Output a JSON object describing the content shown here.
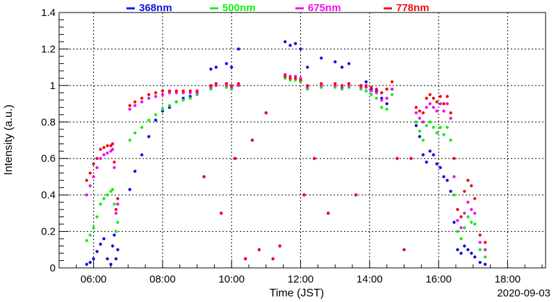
{
  "chart_data": {
    "type": "scatter",
    "title": "",
    "xlabel": "Time (JST)",
    "ylabel": "Intensity (a.u.)",
    "date_label": "2020-09-03",
    "xlim": [
      5.0,
      19.1
    ],
    "ylim": [
      0,
      1.4
    ],
    "x_tick_values": [
      6,
      8,
      10,
      12,
      14,
      16,
      18
    ],
    "x_tick_labels": [
      "06:00",
      "08:00",
      "10:00",
      "12:00",
      "14:00",
      "16:00",
      "18:00"
    ],
    "y_tick_values": [
      0,
      0.2,
      0.4,
      0.6,
      0.8,
      1.0,
      1.2,
      1.4
    ],
    "y_tick_labels": [
      "0",
      "0.2",
      "0.4",
      "0.6",
      "0.8",
      "1",
      "1.2",
      "1.4"
    ],
    "grid": true,
    "legend_position": "top",
    "series": [
      {
        "name": "368nm",
        "color": "#1010e0",
        "x": [
          5.8,
          5.9,
          6.0,
          6.1,
          6.2,
          6.3,
          6.4,
          6.5,
          6.55,
          6.6,
          6.65,
          6.7,
          7.05,
          7.2,
          7.4,
          7.6,
          7.8,
          8.0,
          8.2,
          8.4,
          8.6,
          8.8,
          9.0,
          9.2,
          9.4,
          9.55,
          9.7,
          9.85,
          10.0,
          10.1,
          10.2,
          10.4,
          10.6,
          10.8,
          11.0,
          11.2,
          11.4,
          11.55,
          11.7,
          11.85,
          12.0,
          12.1,
          12.2,
          12.4,
          12.6,
          12.8,
          13.0,
          13.2,
          13.4,
          13.6,
          13.75,
          13.9,
          14.05,
          14.2,
          14.35,
          14.5,
          14.65,
          14.8,
          15.0,
          15.2,
          15.35,
          15.45,
          15.55,
          15.65,
          15.75,
          15.85,
          15.95,
          16.05,
          16.15,
          16.25,
          16.35,
          16.45,
          16.55,
          16.65,
          16.75,
          16.85,
          16.95,
          17.05,
          17.2,
          17.35
        ],
        "y": [
          0.02,
          0.03,
          0.05,
          0.09,
          0.13,
          0.16,
          0.05,
          0.02,
          0.12,
          0.18,
          0.05,
          0.1,
          0.43,
          0.53,
          0.62,
          0.72,
          0.81,
          0.86,
          0.88,
          0.91,
          0.93,
          0.94,
          0.96,
          0.5,
          1.09,
          1.1,
          0.3,
          1.12,
          1.1,
          0.6,
          1.2,
          0.05,
          0.7,
          0.1,
          0.85,
          0.05,
          0.12,
          1.24,
          1.22,
          1.23,
          1.2,
          0.4,
          1.1,
          0.6,
          1.15,
          0.3,
          1.13,
          1.1,
          1.12,
          0.4,
          1.0,
          1.02,
          0.98,
          0.97,
          0.93,
          0.9,
          0.98,
          0.6,
          0.1,
          0.6,
          0.78,
          0.72,
          0.62,
          0.58,
          0.64,
          0.62,
          0.57,
          0.55,
          0.5,
          0.48,
          0.42,
          0.25,
          0.1,
          0.08,
          0.12,
          0.1,
          0.08,
          0.06,
          0.03,
          0.02
        ]
      },
      {
        "name": "500nm",
        "color": "#10f010",
        "x": [
          5.8,
          5.9,
          6.0,
          6.1,
          6.2,
          6.3,
          6.4,
          6.5,
          6.55,
          6.6,
          6.65,
          6.7,
          7.05,
          7.2,
          7.4,
          7.6,
          7.8,
          8.0,
          8.2,
          8.4,
          8.6,
          8.8,
          9.0,
          9.2,
          9.4,
          9.55,
          9.7,
          9.85,
          10.0,
          10.1,
          10.2,
          10.4,
          10.6,
          10.8,
          11.0,
          11.2,
          11.4,
          11.55,
          11.7,
          11.85,
          12.0,
          12.1,
          12.2,
          12.4,
          12.6,
          12.8,
          13.0,
          13.2,
          13.4,
          13.6,
          13.75,
          13.9,
          14.05,
          14.2,
          14.35,
          14.5,
          14.65,
          14.8,
          15.0,
          15.2,
          15.35,
          15.45,
          15.55,
          15.65,
          15.75,
          15.85,
          15.95,
          16.05,
          16.15,
          16.25,
          16.35,
          16.45,
          16.55,
          16.65,
          16.75,
          16.85,
          16.95,
          17.05,
          17.2,
          17.35
        ],
        "y": [
          0.15,
          0.18,
          0.22,
          0.28,
          0.35,
          0.38,
          0.4,
          0.42,
          0.43,
          0.35,
          0.2,
          0.25,
          0.7,
          0.74,
          0.77,
          0.81,
          0.84,
          0.87,
          0.89,
          0.91,
          0.92,
          0.93,
          0.95,
          0.5,
          0.98,
          1.0,
          0.3,
          0.99,
          0.98,
          0.6,
          1.0,
          0.05,
          0.7,
          0.1,
          0.85,
          0.05,
          0.12,
          1.04,
          1.03,
          1.03,
          1.02,
          0.4,
          0.98,
          0.6,
          0.99,
          0.3,
          0.99,
          0.98,
          0.99,
          0.4,
          0.98,
          0.97,
          0.95,
          0.93,
          0.88,
          0.87,
          0.95,
          0.6,
          0.1,
          0.6,
          0.8,
          0.75,
          0.7,
          0.78,
          0.8,
          0.77,
          0.74,
          0.77,
          0.73,
          0.77,
          0.7,
          0.4,
          0.2,
          0.16,
          0.22,
          0.28,
          0.25,
          0.24,
          0.1,
          0.06
        ]
      },
      {
        "name": "675nm",
        "color": "#f010f0",
        "x": [
          5.8,
          5.9,
          6.0,
          6.1,
          6.2,
          6.3,
          6.4,
          6.5,
          6.55,
          6.6,
          6.65,
          6.7,
          7.05,
          7.2,
          7.4,
          7.6,
          7.8,
          8.0,
          8.2,
          8.4,
          8.6,
          8.8,
          9.0,
          9.2,
          9.4,
          9.55,
          9.7,
          9.85,
          10.0,
          10.1,
          10.2,
          10.4,
          10.6,
          10.8,
          11.0,
          11.2,
          11.4,
          11.55,
          11.7,
          11.85,
          12.0,
          12.1,
          12.2,
          12.4,
          12.6,
          12.8,
          13.0,
          13.2,
          13.4,
          13.6,
          13.75,
          13.9,
          14.05,
          14.2,
          14.35,
          14.5,
          14.65,
          14.8,
          15.0,
          15.2,
          15.35,
          15.45,
          15.55,
          15.65,
          15.75,
          15.85,
          15.95,
          16.05,
          16.15,
          16.25,
          16.35,
          16.45,
          16.55,
          16.65,
          16.75,
          16.85,
          16.95,
          17.05,
          17.2,
          17.35
        ],
        "y": [
          0.4,
          0.45,
          0.5,
          0.55,
          0.6,
          0.62,
          0.63,
          0.64,
          0.65,
          0.55,
          0.3,
          0.35,
          0.87,
          0.89,
          0.91,
          0.93,
          0.94,
          0.95,
          0.96,
          0.96,
          0.96,
          0.96,
          0.96,
          0.5,
          0.99,
          1.0,
          0.3,
          1.0,
          0.99,
          0.6,
          1.0,
          0.05,
          0.7,
          0.1,
          0.85,
          0.05,
          0.12,
          1.06,
          1.05,
          1.05,
          1.04,
          0.4,
          0.99,
          0.6,
          1.0,
          0.3,
          1.0,
          0.99,
          1.0,
          0.4,
          0.99,
          0.99,
          0.97,
          0.96,
          0.92,
          0.93,
          0.98,
          0.6,
          0.1,
          0.6,
          0.85,
          0.82,
          0.8,
          0.88,
          0.9,
          0.88,
          0.86,
          0.9,
          0.86,
          0.9,
          0.82,
          0.5,
          0.26,
          0.22,
          0.3,
          0.36,
          0.32,
          0.3,
          0.14,
          0.1
        ]
      },
      {
        "name": "778nm",
        "color": "#f01010",
        "x": [
          5.8,
          5.9,
          6.0,
          6.1,
          6.2,
          6.3,
          6.4,
          6.5,
          6.55,
          6.6,
          6.65,
          6.7,
          7.05,
          7.2,
          7.4,
          7.6,
          7.8,
          8.0,
          8.2,
          8.4,
          8.6,
          8.8,
          9.0,
          9.2,
          9.4,
          9.55,
          9.7,
          9.85,
          10.0,
          10.1,
          10.2,
          10.4,
          10.6,
          10.8,
          11.0,
          11.2,
          11.4,
          11.55,
          11.7,
          11.85,
          12.0,
          12.1,
          12.2,
          12.4,
          12.6,
          12.8,
          13.0,
          13.2,
          13.4,
          13.6,
          13.75,
          13.9,
          14.05,
          14.2,
          14.35,
          14.5,
          14.65,
          14.8,
          15.0,
          15.2,
          15.35,
          15.45,
          15.55,
          15.65,
          15.75,
          15.85,
          15.95,
          16.05,
          16.15,
          16.25,
          16.35,
          16.45,
          16.55,
          16.65,
          16.75,
          16.85,
          16.95,
          17.05,
          17.2,
          17.35
        ],
        "y": [
          0.48,
          0.52,
          0.57,
          0.6,
          0.65,
          0.66,
          0.67,
          0.67,
          0.68,
          0.58,
          0.32,
          0.38,
          0.89,
          0.91,
          0.93,
          0.95,
          0.96,
          0.97,
          0.97,
          0.97,
          0.97,
          0.97,
          0.97,
          0.5,
          1.0,
          1.01,
          0.3,
          1.01,
          1.0,
          0.6,
          1.01,
          0.05,
          0.7,
          0.1,
          0.85,
          0.05,
          0.12,
          1.05,
          1.04,
          1.04,
          1.03,
          0.4,
          1.0,
          0.6,
          1.01,
          0.3,
          1.01,
          1.0,
          1.01,
          0.4,
          1.0,
          1.0,
          0.99,
          0.98,
          0.96,
          0.98,
          1.02,
          0.6,
          0.1,
          0.6,
          0.88,
          0.86,
          0.85,
          0.93,
          0.95,
          0.93,
          0.91,
          0.94,
          0.9,
          0.94,
          0.85,
          0.6,
          0.32,
          0.28,
          0.42,
          0.48,
          0.45,
          0.38,
          0.18,
          0.14
        ]
      }
    ]
  }
}
